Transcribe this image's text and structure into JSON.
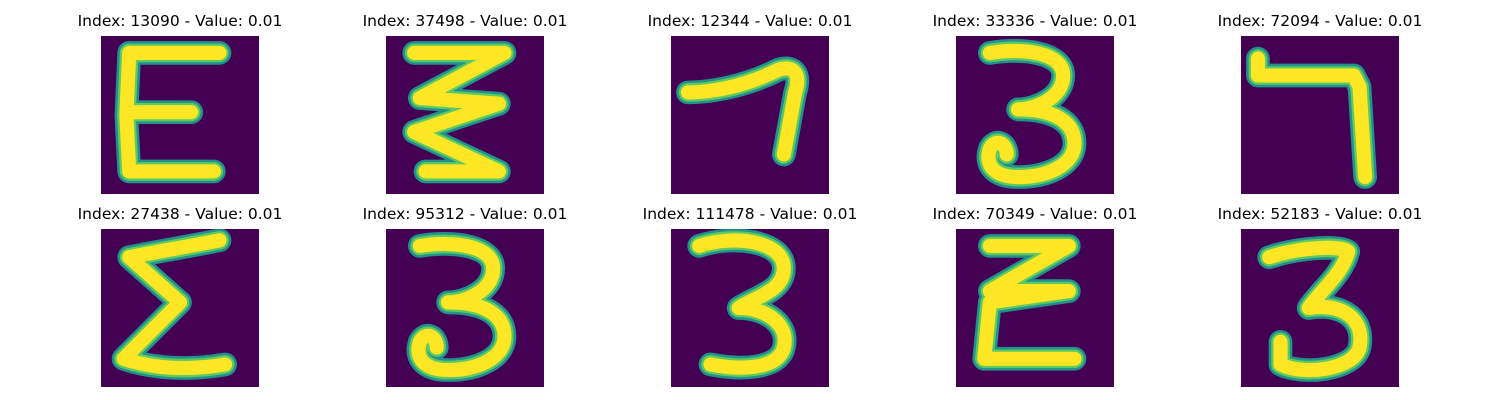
{
  "colors": {
    "background": "#440154",
    "stroke_core": "#fde725",
    "stroke_mid": "#5ec962",
    "stroke_edge": "#21918c"
  },
  "tiles": [
    {
      "title": "Index: 13090 - Value: 0.01",
      "glyph": "epsilon"
    },
    {
      "title": "Index: 37498 - Value: 0.01",
      "glyph": "zigzag"
    },
    {
      "title": "Index: 12344 - Value: 0.01",
      "glyph": "seven-thin"
    },
    {
      "title": "Index: 33336 - Value: 0.01",
      "glyph": "three"
    },
    {
      "title": "Index: 72094 - Value: 0.01",
      "glyph": "seven-bold"
    },
    {
      "title": "Index: 27438 - Value: 0.01",
      "glyph": "sigma"
    },
    {
      "title": "Index: 95312 - Value: 0.01",
      "glyph": "three"
    },
    {
      "title": "Index: 111478 - Value: 0.01",
      "glyph": "three-b"
    },
    {
      "title": "Index: 70349 - Value: 0.01",
      "glyph": "epsilon-z"
    },
    {
      "title": "Index: 52183 - Value: 0.01",
      "glyph": "three-c"
    }
  ]
}
